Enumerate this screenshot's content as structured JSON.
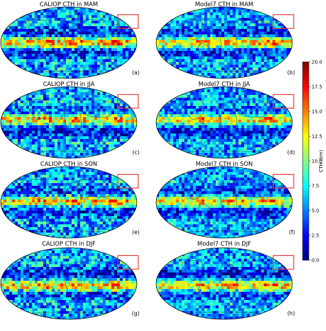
{
  "chart_data": {
    "type": "heatmap",
    "panels": [
      {
        "title": "CALIOP CTH in MAM",
        "label": "(a)",
        "season": "MAM",
        "source": "CALIOP"
      },
      {
        "title": "Model7 CTH in MAM",
        "label": "(b)",
        "season": "MAM",
        "source": "Model7"
      },
      {
        "title": "CALIOP CTH in JJA",
        "label": "(c)",
        "season": "JJA",
        "source": "CALIOP"
      },
      {
        "title": "Model7 CTH in JJA",
        "label": "(d)",
        "season": "JJA",
        "source": "Model7"
      },
      {
        "title": "CALIOP CTH in SON",
        "label": "(e)",
        "season": "SON",
        "source": "CALIOP"
      },
      {
        "title": "Model7 CTH in SON",
        "label": "(f)",
        "season": "SON",
        "source": "Model7"
      },
      {
        "title": "CALIOP CTH in DJF",
        "label": "(g)",
        "season": "DJF",
        "source": "CALIOP"
      },
      {
        "title": "Model7 CTH in DJF",
        "label": "(h)",
        "season": "DJF",
        "source": "Model7"
      }
    ],
    "projection": "robinson-like global map",
    "colorbar": {
      "label": "CTH (km)",
      "range": [
        0.0,
        20.0
      ],
      "ticks": [
        "0.0",
        "2.5",
        "5.0",
        "7.5",
        "10.0",
        "12.5",
        "15.0",
        "17.5",
        "20.0"
      ],
      "colormap": "jet"
    }
  },
  "colors": {
    "highlight_box": "#e53935",
    "background": "#ffffff"
  }
}
